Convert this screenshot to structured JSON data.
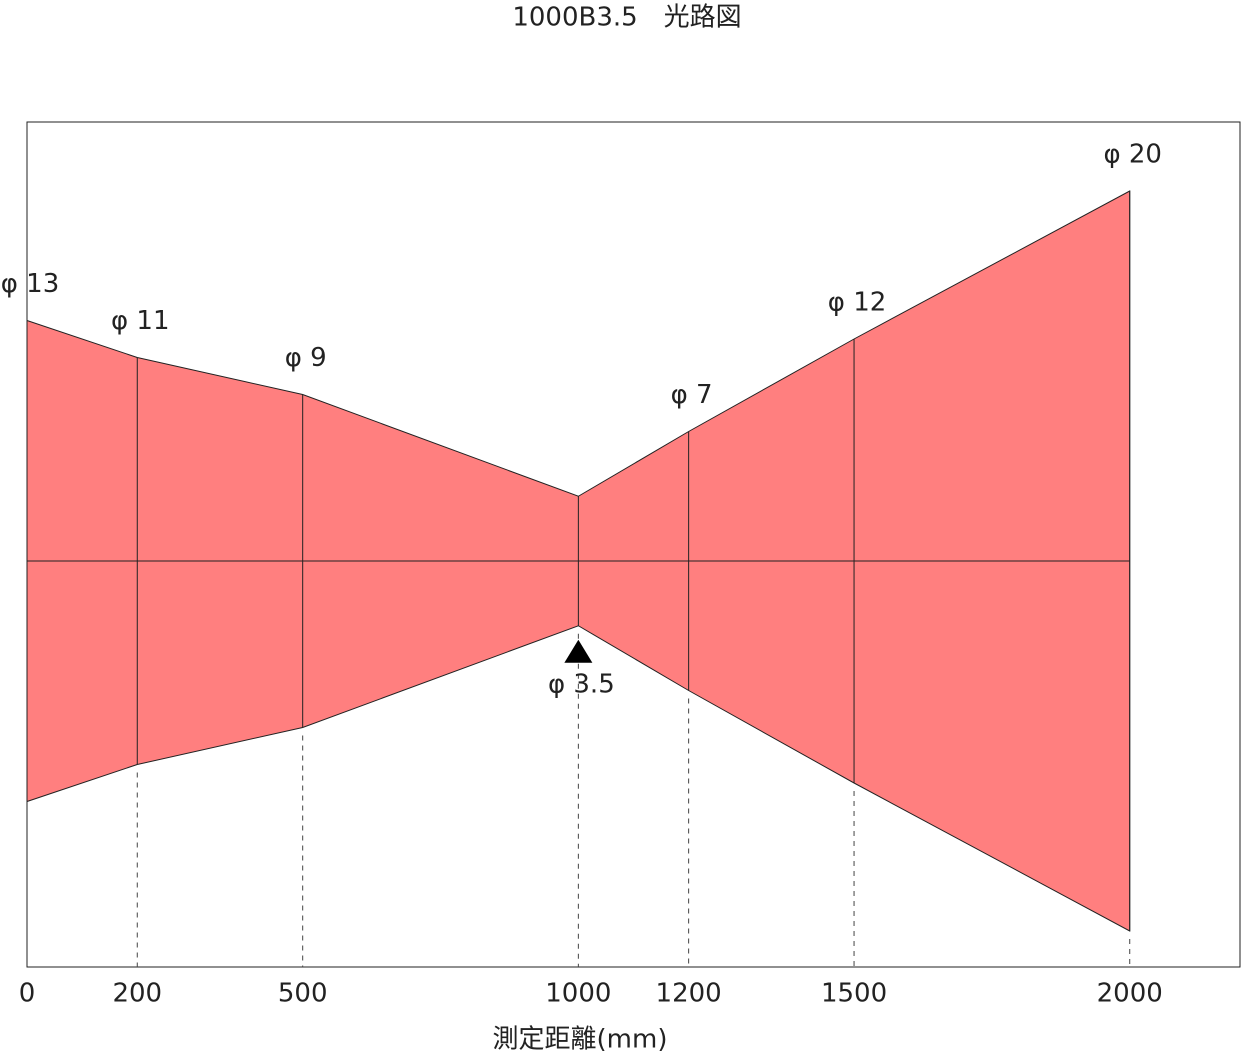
{
  "chart_data": {
    "type": "beam",
    "title": "1000B3.5　光路図",
    "x_label": "測定距離(mm)",
    "x": [
      0,
      200,
      500,
      1000,
      1200,
      1500,
      2000
    ],
    "values": [
      13,
      11,
      9,
      3.5,
      7,
      12,
      20
    ],
    "value_labels": [
      "φ 13",
      "φ 11",
      "φ 9",
      "φ 3.5",
      "φ 7",
      "φ 12",
      "φ 20"
    ],
    "xlim": [
      0,
      2200
    ],
    "xticks": [
      0,
      200,
      500,
      1000,
      1200,
      1500,
      2000
    ],
    "color": "#ff7f7f"
  }
}
